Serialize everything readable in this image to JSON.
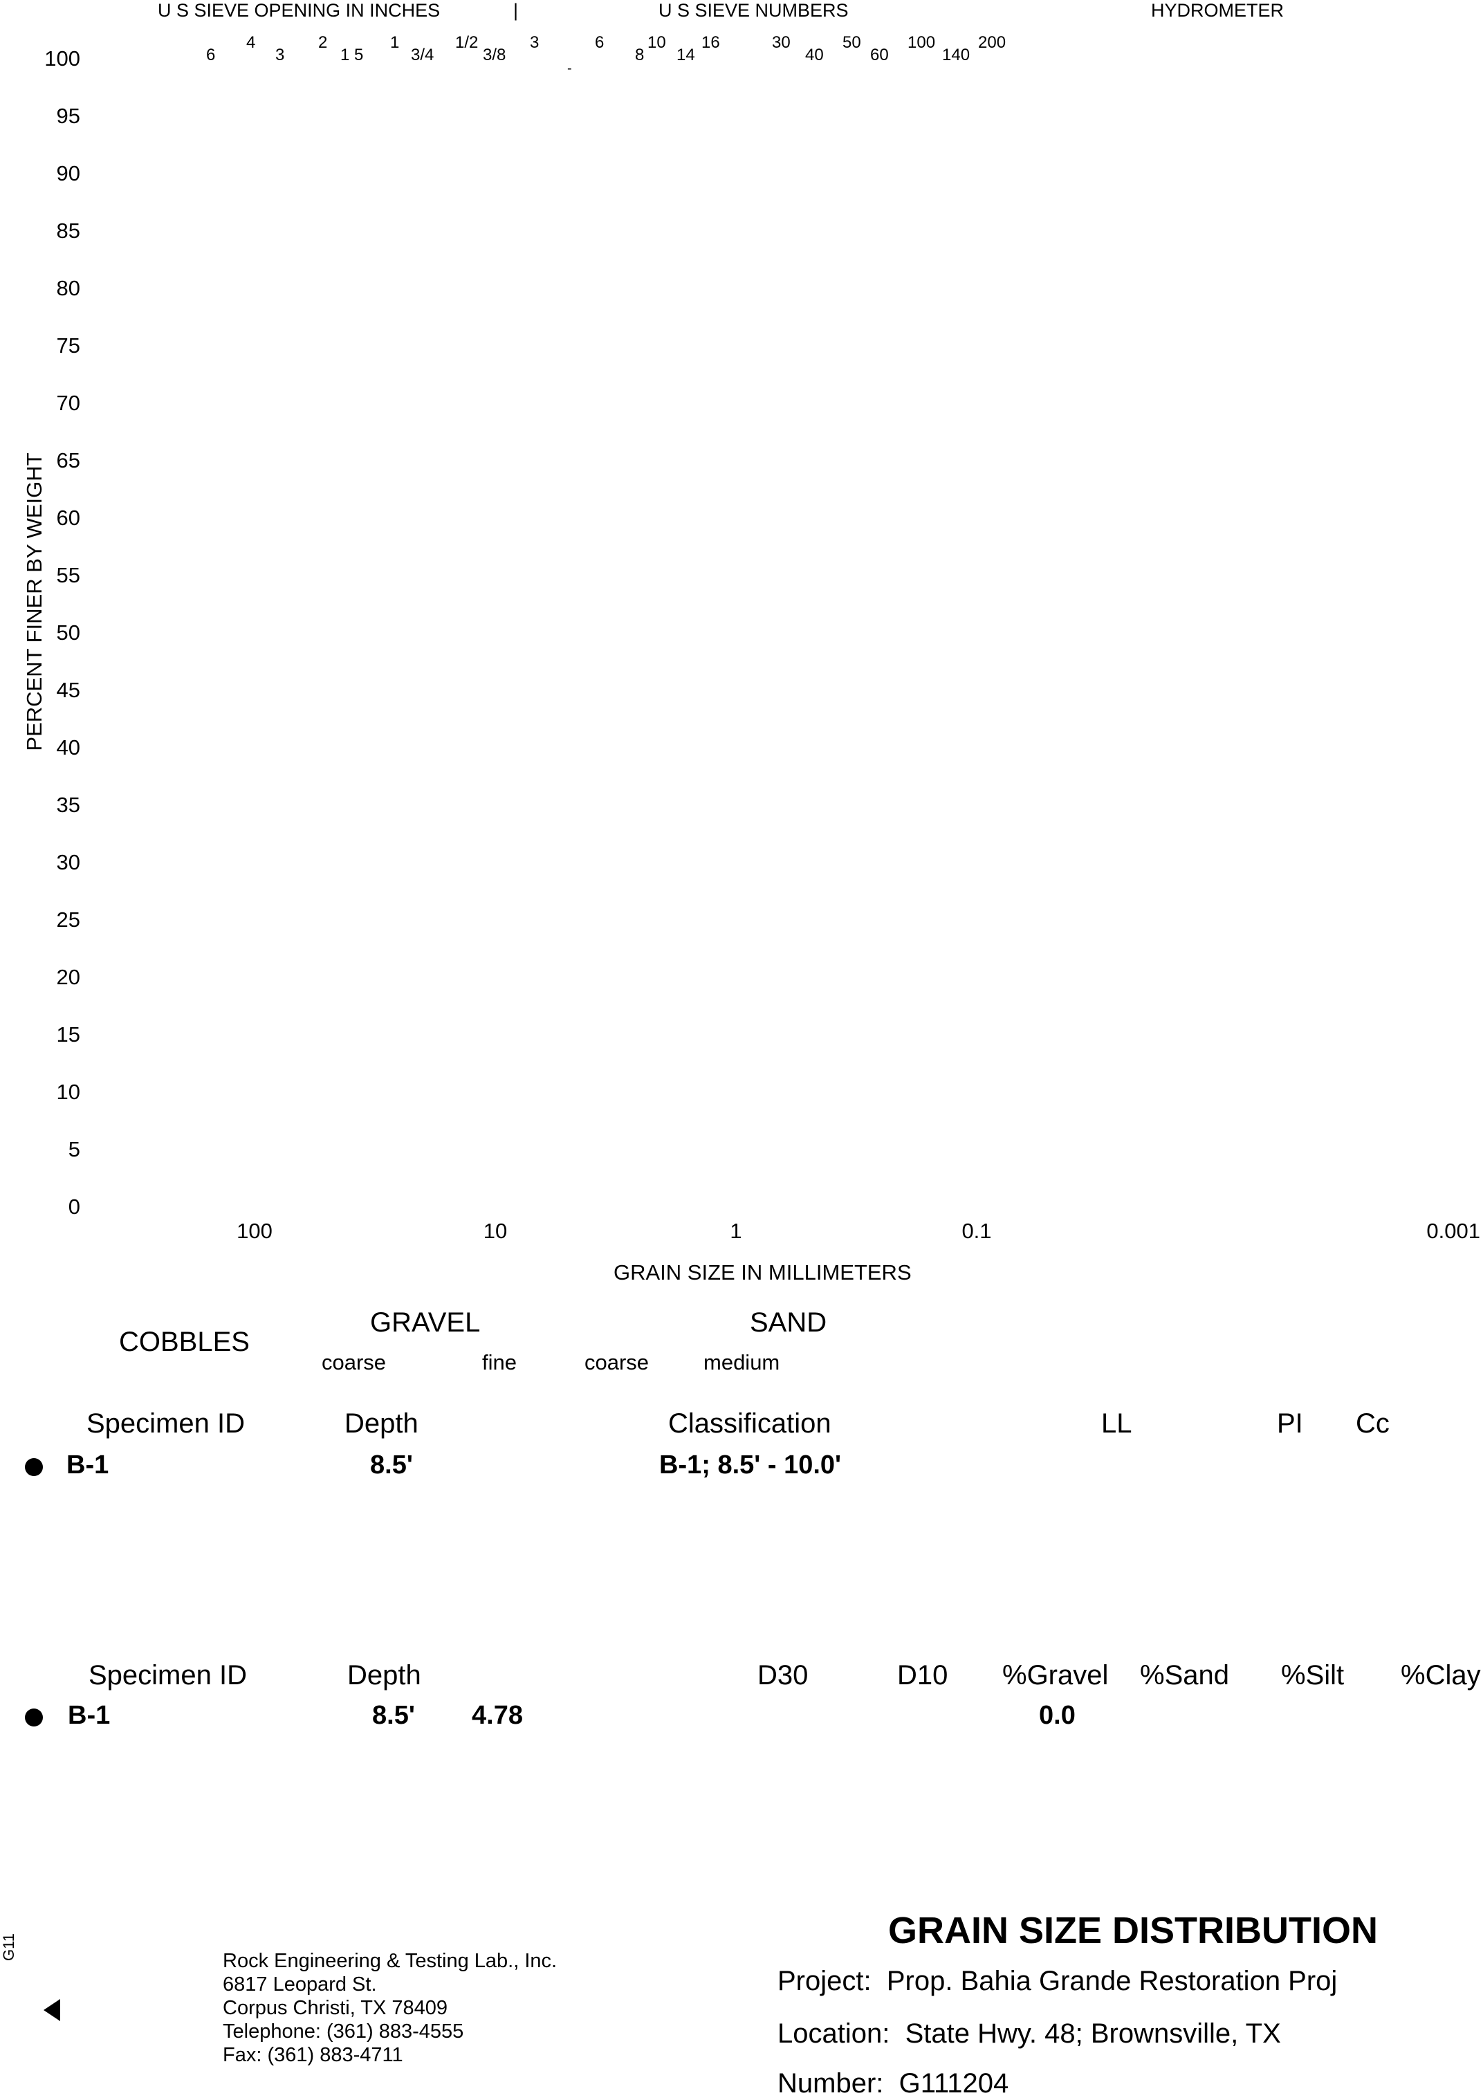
{
  "chart_data": {
    "type": "line",
    "title": "",
    "xlabel": "GRAIN SIZE IN MILLIMETERS",
    "ylabel": "PERCENT FINER BY WEIGHT",
    "x_scale": "log",
    "x_reversed": true,
    "xlim": [
      100,
      0.001
    ],
    "ylim": [
      0,
      100
    ],
    "yticks": [
      "100",
      "95",
      "90",
      "85",
      "80",
      "75",
      "70",
      "65",
      "60",
      "55",
      "50",
      "45",
      "40",
      "35",
      "30",
      "25",
      "20",
      "15",
      "10",
      "5",
      "0"
    ],
    "xticks": [
      "100",
      "10",
      "1",
      "0.1",
      "0.001"
    ],
    "series": [],
    "top_axis": {
      "sieve_opening_label": "U S SIEVE OPENING IN INCHES",
      "separator": "|",
      "sieve_numbers_label": "U S SIEVE NUMBERS",
      "hydrometer_label": "HYDROMETER",
      "sieve_inches": [
        "6",
        "4",
        "3",
        "2",
        "1 5",
        "1",
        "3/4",
        "1/2",
        "3/8",
        "3"
      ],
      "sieve_numbers": [
        "6",
        "8",
        "10",
        "14",
        "16",
        "30",
        "40",
        "50",
        "60",
        "100",
        "140",
        "200"
      ],
      "stray_mark": "-"
    }
  },
  "soil_bands": {
    "cobbles": "COBBLES",
    "gravel": "GRAVEL",
    "gravel_coarse": "coarse",
    "gravel_fine": "fine",
    "sand": "SAND",
    "sand_coarse": "coarse",
    "sand_medium": "medium"
  },
  "table1": {
    "headers": {
      "specimen": "Specimen ID",
      "depth": "Depth",
      "classification": "Classification",
      "ll": "LL",
      "pi": "PI",
      "cc": "Cc"
    },
    "row": {
      "specimen": "B-1",
      "depth": "8.5'",
      "classification": "B-1; 8.5' - 10.0'"
    }
  },
  "table2": {
    "headers": {
      "specimen": "Specimen ID",
      "depth": "Depth",
      "d30": "D30",
      "d10": "D10",
      "gravel": "%Gravel",
      "sand": "%Sand",
      "silt": "%Silt",
      "clay": "%Clay"
    },
    "row": {
      "specimen": "B-1",
      "depth": "8.5'",
      "value": "4.78",
      "gravel": "0.0"
    }
  },
  "company": {
    "name": "Rock Engineering & Testing Lab., Inc.",
    "street": "6817 Leopard St.",
    "city": "Corpus Christi, TX 78409",
    "telephone": "Telephone:  (361) 883-4555",
    "fax": "Fax:  (361) 883-4711"
  },
  "report": {
    "title": "GRAIN SIZE DISTRIBUTION",
    "project_label": "Project:",
    "project": "Prop. Bahia Grande Restoration Proj",
    "location_label": "Location:",
    "location": "State Hwy. 48; Brownsville, TX",
    "number_label": "Number:",
    "number": "G111204"
  },
  "side_code": "G11"
}
